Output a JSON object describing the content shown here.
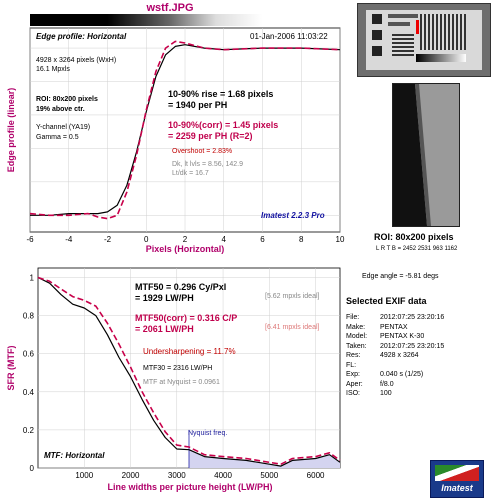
{
  "top_title": "wstf.JPG",
  "top": {
    "header_left": "Edge profile: Horizontal",
    "header_right": "01-Jan-2006 11:03:22",
    "info_lines": [
      "4928 x 3264 pixels (WxH)",
      "16.1 Mpxls"
    ],
    "roi_lines": [
      "ROI: 80x200 pixels",
      "19% above ctr."
    ],
    "channel_lines": [
      "Y-channel (YA19)",
      "Gamma = 0.5"
    ],
    "rise_lines": [
      "10-90% rise = 1.68 pixels",
      "= 1940 per PH"
    ],
    "corr_lines": [
      "10-90%(corr) = 1.45 pixels",
      "= 2259 per PH  (R=2)"
    ],
    "overshoot": "Overshoot = 2.83%",
    "dk_lines": [
      "Dk, lt lvls = 8.56, 142.9",
      "Lt/dk = 16.7"
    ],
    "version": "Imatest 2.2.3 Pro",
    "ylabel": "Edge profile (linear)",
    "xlabel": "Pixels (Horizontal)"
  },
  "right": {
    "roi_label": "ROI: 80x200 pixels",
    "lrtb": "L R T B = 2452 2531  963 1162",
    "edge_angle": "Edge angle = -5.81 degs",
    "exif_title": "Selected EXIF data",
    "exif": [
      [
        "File:",
        "2012:07:25 23:20:16"
      ],
      [
        "Make:",
        "PENTAX"
      ],
      [
        "Model:",
        "PENTAX K-30"
      ],
      [
        "Taken:",
        "2012:07:25 23:20:15"
      ],
      [
        "Res:",
        "4928 x 3264"
      ],
      [
        "FL:",
        ""
      ],
      [
        "Exp:",
        "0.040 s  (1/25)"
      ],
      [
        "Aper:",
        "f/8.0"
      ],
      [
        "ISO:",
        "100"
      ]
    ],
    "logo_text": "Imatest"
  },
  "bottom": {
    "mtf50_lines": [
      "MTF50 = 0.296 Cy/Pxl",
      "= 1929 LW/PH"
    ],
    "mtf50_ideal": "[5.62 mpxls ideal]",
    "mtf50c_lines": [
      "MTF50(corr) = 0.316 C/P",
      "= 2061 LW/PH"
    ],
    "mtf50c_ideal": "[6.41 mpxls ideal]",
    "undersharp": "Undersharpening = 11.7%",
    "mtf30": "MTF30 = 2316 LW/PH",
    "nyq_mtf": "MTF at Nyquist = 0.0961",
    "nyquist_label": "Nyquist freq.",
    "footer": "MTF: Horizontal",
    "ylabel": "SFR (MTF)",
    "xlabel": "Line widths per picture height (LW/PH)"
  },
  "chart_data": [
    {
      "type": "line",
      "title": "Edge profile: Horizontal",
      "xlabel": "Pixels (Horizontal)",
      "ylabel": "Edge profile (linear)",
      "xlim": [
        -6,
        10
      ],
      "xticks": [
        -6,
        -4,
        -2,
        0,
        2,
        4,
        6,
        8,
        10
      ],
      "ylim": [
        -0.1,
        1.12
      ],
      "grid": true,
      "x": [
        -6,
        -5,
        -4,
        -3,
        -2.5,
        -2,
        -1.5,
        -1,
        -0.5,
        0,
        0.5,
        1,
        1.5,
        2,
        3,
        4,
        6,
        8,
        10
      ],
      "series": [
        {
          "name": "",
          "color": "#000000",
          "dash": false,
          "values": [
            0,
            0,
            0.01,
            0.01,
            0.01,
            0.02,
            0.06,
            0.18,
            0.38,
            0.62,
            0.83,
            0.96,
            1.01,
            1.02,
            1.0,
            0.99,
            1.0,
            1.0,
            0.99
          ]
        },
        {
          "name": "",
          "color": "#c8004a",
          "dash": true,
          "values": [
            0.01,
            0.0,
            0.0,
            0.01,
            -0.01,
            -0.02,
            0.0,
            0.14,
            0.36,
            0.63,
            0.86,
            1.0,
            1.04,
            1.03,
            1.0,
            0.99,
            1.0,
            1.0,
            0.99
          ]
        }
      ]
    },
    {
      "type": "line",
      "title": "MTF: Horizontal",
      "xlabel": "Line widths per picture height (LW/PH)",
      "ylabel": "SFR (MTF)",
      "xlim": [
        0,
        6528
      ],
      "xticks": [
        1000,
        2000,
        3000,
        4000,
        5000,
        6000
      ],
      "ylim": [
        0,
        1.05
      ],
      "yticks": [
        0,
        0.2,
        0.4,
        0.6,
        0.8,
        1
      ],
      "grid": true,
      "nyquist": 3264,
      "x": [
        0,
        250,
        500,
        750,
        1000,
        1250,
        1500,
        1750,
        2000,
        2250,
        2500,
        2750,
        3000,
        3264,
        3600,
        4000,
        4500,
        5000,
        5250,
        5500,
        6000,
        6300,
        6528
      ],
      "series": [
        {
          "name": "",
          "color": "#000000",
          "dash": false,
          "values": [
            1.0,
            0.97,
            0.91,
            0.86,
            0.84,
            0.8,
            0.7,
            0.58,
            0.48,
            0.36,
            0.25,
            0.16,
            0.1,
            0.096,
            0.06,
            0.05,
            0.04,
            0.02,
            0.01,
            0.04,
            0.05,
            0.07,
            0.03
          ]
        },
        {
          "name": "",
          "color": "#c8004a",
          "dash": true,
          "values": [
            1.0,
            0.98,
            0.94,
            0.9,
            0.88,
            0.85,
            0.76,
            0.65,
            0.53,
            0.4,
            0.29,
            0.19,
            0.12,
            0.11,
            0.07,
            0.06,
            0.05,
            0.03,
            0.02,
            0.05,
            0.06,
            0.08,
            0.04
          ]
        }
      ]
    }
  ]
}
